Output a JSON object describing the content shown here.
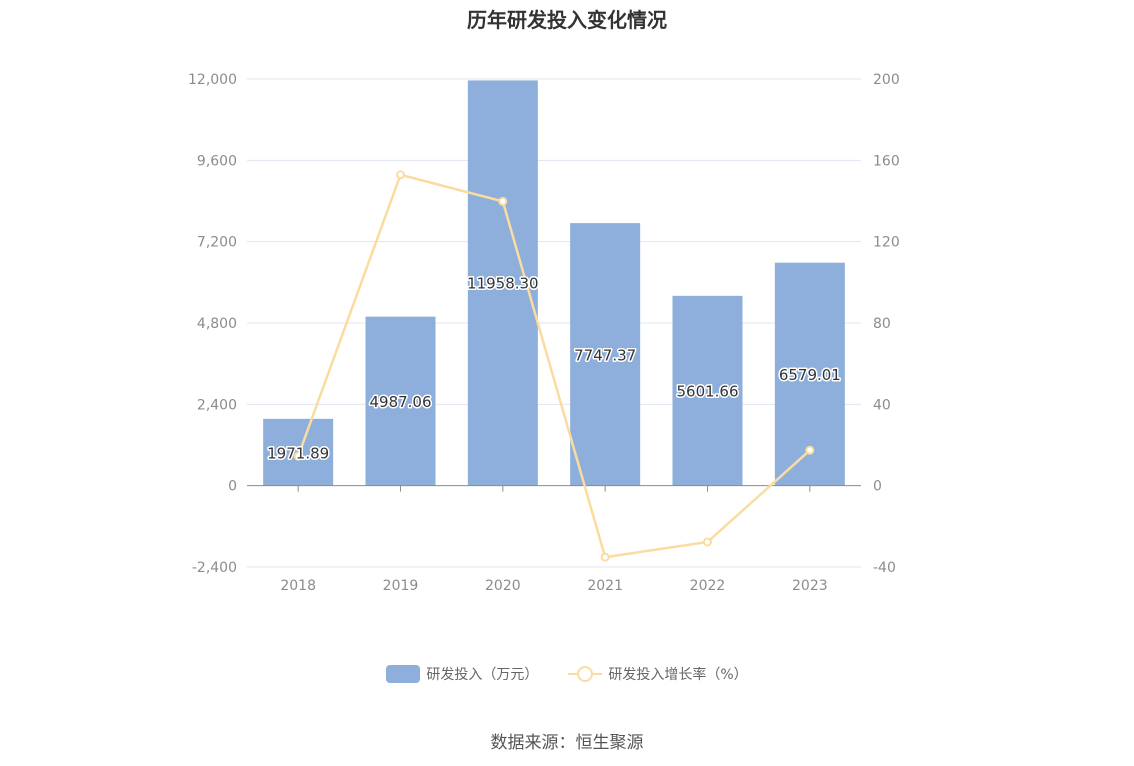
{
  "chart_data": {
    "type": "bar",
    "title": "历年研发投入变化情况",
    "categories": [
      "2018",
      "2019",
      "2020",
      "2021",
      "2022",
      "2023"
    ],
    "series": [
      {
        "name": "研发投入（万元）",
        "type": "bar",
        "axis": "left",
        "color": "#8eaedb",
        "values": [
          1971.89,
          4987.06,
          11958.3,
          7747.37,
          5601.66,
          6579.01
        ],
        "labels": [
          "1971.89",
          "4987.06",
          "11958.30",
          "7747.37",
          "5601.66",
          "6579.01"
        ]
      },
      {
        "name": "研发投入增长率（%）",
        "type": "line",
        "axis": "right",
        "color": "#fadca0",
        "values": [
          14.5,
          152.9,
          139.8,
          -35.2,
          -27.7,
          17.4
        ]
      }
    ],
    "y_left": {
      "min": -2400,
      "max": 12000,
      "ticks": [
        -2400,
        0,
        2400,
        4800,
        7200,
        9600,
        12000
      ],
      "tick_labels": [
        "-2,400",
        "0",
        "2,400",
        "4,800",
        "7,200",
        "9,600",
        "12,000"
      ]
    },
    "y_right": {
      "min": -40,
      "max": 200,
      "ticks": [
        -40,
        0,
        40,
        80,
        120,
        160,
        200
      ],
      "tick_labels": [
        "-40",
        "0",
        "40",
        "80",
        "120",
        "160",
        "200"
      ]
    },
    "grid": true,
    "legend_position": "bottom"
  },
  "footer": {
    "source": "数据来源：恒生聚源"
  }
}
